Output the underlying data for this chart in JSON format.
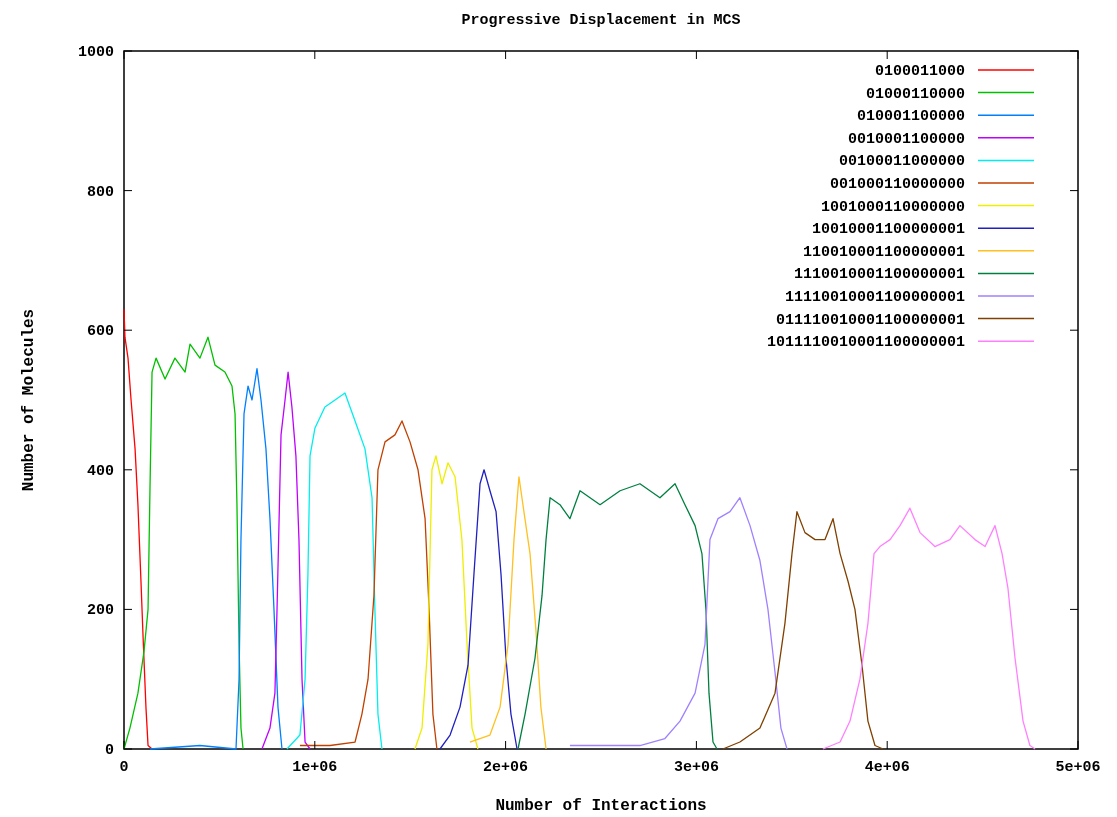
{
  "chart_data": {
    "type": "line",
    "title": "Progressive Displacement in MCS",
    "xlabel": "Number of Interactions",
    "ylabel": "Number of Molecules",
    "xlim": [
      0,
      5000000
    ],
    "ylim": [
      0,
      1000
    ],
    "xticks": [
      {
        "value": 0,
        "label": "0"
      },
      {
        "value": 1000000,
        "label": "1e+06"
      },
      {
        "value": 2000000,
        "label": "2e+06"
      },
      {
        "value": 3000000,
        "label": "3e+06"
      },
      {
        "value": 4000000,
        "label": "4e+06"
      },
      {
        "value": 5000000,
        "label": "5e+06"
      }
    ],
    "yticks": [
      0,
      200,
      400,
      600,
      800,
      1000
    ],
    "grid": false,
    "legend": "top right",
    "series": [
      {
        "name": "0100011000",
        "color": "#ff0000",
        "x": [
          0,
          5000,
          21000,
          37000,
          58000,
          73000,
          89000,
          100000,
          115000,
          126000,
          147000
        ],
        "values": [
          630,
          590,
          560,
          500,
          430,
          350,
          240,
          160,
          60,
          5,
          0
        ]
      },
      {
        "name": "01000110000",
        "color": "#00c000",
        "x": [
          0,
          31000,
          73000,
          105000,
          126000,
          136000,
          147000,
          168000,
          215000,
          267000,
          320000,
          346000,
          398000,
          440000,
          477000,
          529000,
          566000,
          582000,
          592000,
          603000,
          613000,
          624000
        ],
        "values": [
          0,
          30,
          80,
          140,
          200,
          370,
          540,
          560,
          530,
          560,
          540,
          580,
          560,
          590,
          550,
          540,
          520,
          480,
          350,
          150,
          30,
          0
        ]
      },
      {
        "name": "010001100000",
        "color": "#0080ff",
        "x": [
          136000,
          398000,
          587000,
          603000,
          613000,
          629000,
          650000,
          671000,
          697000,
          718000,
          744000,
          765000,
          786000,
          807000,
          828000
        ],
        "values": [
          0,
          5,
          0,
          100,
          300,
          480,
          520,
          500,
          545,
          500,
          430,
          330,
          200,
          60,
          0
        ]
      },
      {
        "name": "0010001100000",
        "color": "#c000ff",
        "x": [
          723000,
          765000,
          791000,
          802000,
          823000,
          844000,
          860000,
          880000,
          901000,
          917000,
          933000,
          949000,
          975000
        ],
        "values": [
          0,
          30,
          80,
          200,
          450,
          500,
          540,
          490,
          420,
          300,
          100,
          10,
          0
        ]
      },
      {
        "name": "00100011000000",
        "color": "#00eeee",
        "x": [
          854000,
          922000,
          949000,
          964000,
          975000,
          1001000,
          1053000,
          1106000,
          1158000,
          1211000,
          1263000,
          1300000,
          1315000,
          1331000,
          1352000
        ],
        "values": [
          0,
          20,
          100,
          250,
          420,
          460,
          490,
          500,
          510,
          470,
          430,
          360,
          200,
          50,
          0
        ]
      },
      {
        "name": "001000110000000",
        "color": "#c04000",
        "x": [
          922000,
          1080000,
          1211000,
          1247000,
          1279000,
          1310000,
          1331000,
          1368000,
          1420000,
          1457000,
          1499000,
          1541000,
          1578000,
          1599000,
          1619000,
          1640000
        ],
        "values": [
          5,
          5,
          10,
          50,
          100,
          220,
          400,
          440,
          450,
          470,
          440,
          400,
          330,
          200,
          50,
          0
        ]
      },
      {
        "name": "1001000110000000",
        "color": "#eeee00",
        "x": [
          1525000,
          1562000,
          1593000,
          1614000,
          1635000,
          1667000,
          1698000,
          1735000,
          1771000,
          1798000,
          1824000,
          1855000
        ],
        "values": [
          0,
          30,
          150,
          400,
          420,
          380,
          410,
          390,
          300,
          150,
          30,
          0
        ]
      },
      {
        "name": "10010001100000001",
        "color": "#2020c0",
        "x": [
          1656000,
          1709000,
          1761000,
          1803000,
          1834000,
          1866000,
          1887000,
          1918000,
          1950000,
          1976000,
          2002000,
          2028000,
          2060000
        ],
        "values": [
          0,
          20,
          60,
          120,
          250,
          380,
          400,
          370,
          340,
          250,
          130,
          50,
          0
        ]
      },
      {
        "name": "110010001100000001",
        "color": "#ffc020",
        "x": [
          1813000,
          1918000,
          1971000,
          2013000,
          2044000,
          2070000,
          2096000,
          2128000,
          2159000,
          2185000,
          2212000
        ],
        "values": [
          10,
          20,
          60,
          150,
          300,
          390,
          340,
          280,
          170,
          60,
          0
        ]
      },
      {
        "name": "1110010001100000001",
        "color": "#008040",
        "x": [
          2065000,
          2102000,
          2154000,
          2191000,
          2212000,
          2233000,
          2285000,
          2337000,
          2390000,
          2495000,
          2600000,
          2704000,
          2809000,
          2888000,
          2940000,
          2993000,
          3029000,
          3050000,
          3066000,
          3087000,
          3108000
        ],
        "values": [
          0,
          50,
          130,
          220,
          300,
          360,
          350,
          330,
          370,
          350,
          370,
          380,
          360,
          380,
          350,
          320,
          280,
          200,
          80,
          10,
          0
        ]
      },
      {
        "name": "11110010001100000001",
        "color": "#a080ff",
        "x": [
          2337000,
          2704000,
          2835000,
          2914000,
          2993000,
          3045000,
          3071000,
          3113000,
          3176000,
          3228000,
          3281000,
          3333000,
          3375000,
          3412000,
          3443000,
          3475000
        ],
        "values": [
          5,
          5,
          15,
          40,
          80,
          150,
          300,
          330,
          340,
          360,
          320,
          270,
          200,
          110,
          30,
          0
        ]
      },
      {
        "name": "011110010001100000001",
        "color": "#804000",
        "x": [
          3139000,
          3228000,
          3333000,
          3412000,
          3464000,
          3501000,
          3527000,
          3569000,
          3622000,
          3674000,
          3716000,
          3753000,
          3795000,
          3831000,
          3868000,
          3899000,
          3936000,
          3978000
        ],
        "values": [
          0,
          10,
          30,
          80,
          180,
          280,
          340,
          310,
          300,
          300,
          330,
          280,
          240,
          200,
          120,
          40,
          5,
          0
        ]
      },
      {
        "name": "1011110010001100000001",
        "color": "#ff80ff",
        "x": [
          3663000,
          3753000,
          3805000,
          3857000,
          3899000,
          3931000,
          3962000,
          4015000,
          4067000,
          4119000,
          4172000,
          4250000,
          4329000,
          4381000,
          4460000,
          4513000,
          4565000,
          4602000,
          4633000,
          4670000,
          4712000,
          4748000,
          4775000
        ],
        "values": [
          0,
          10,
          40,
          100,
          180,
          280,
          290,
          300,
          320,
          345,
          310,
          290,
          300,
          320,
          300,
          290,
          320,
          280,
          230,
          130,
          40,
          5,
          0
        ]
      }
    ]
  }
}
